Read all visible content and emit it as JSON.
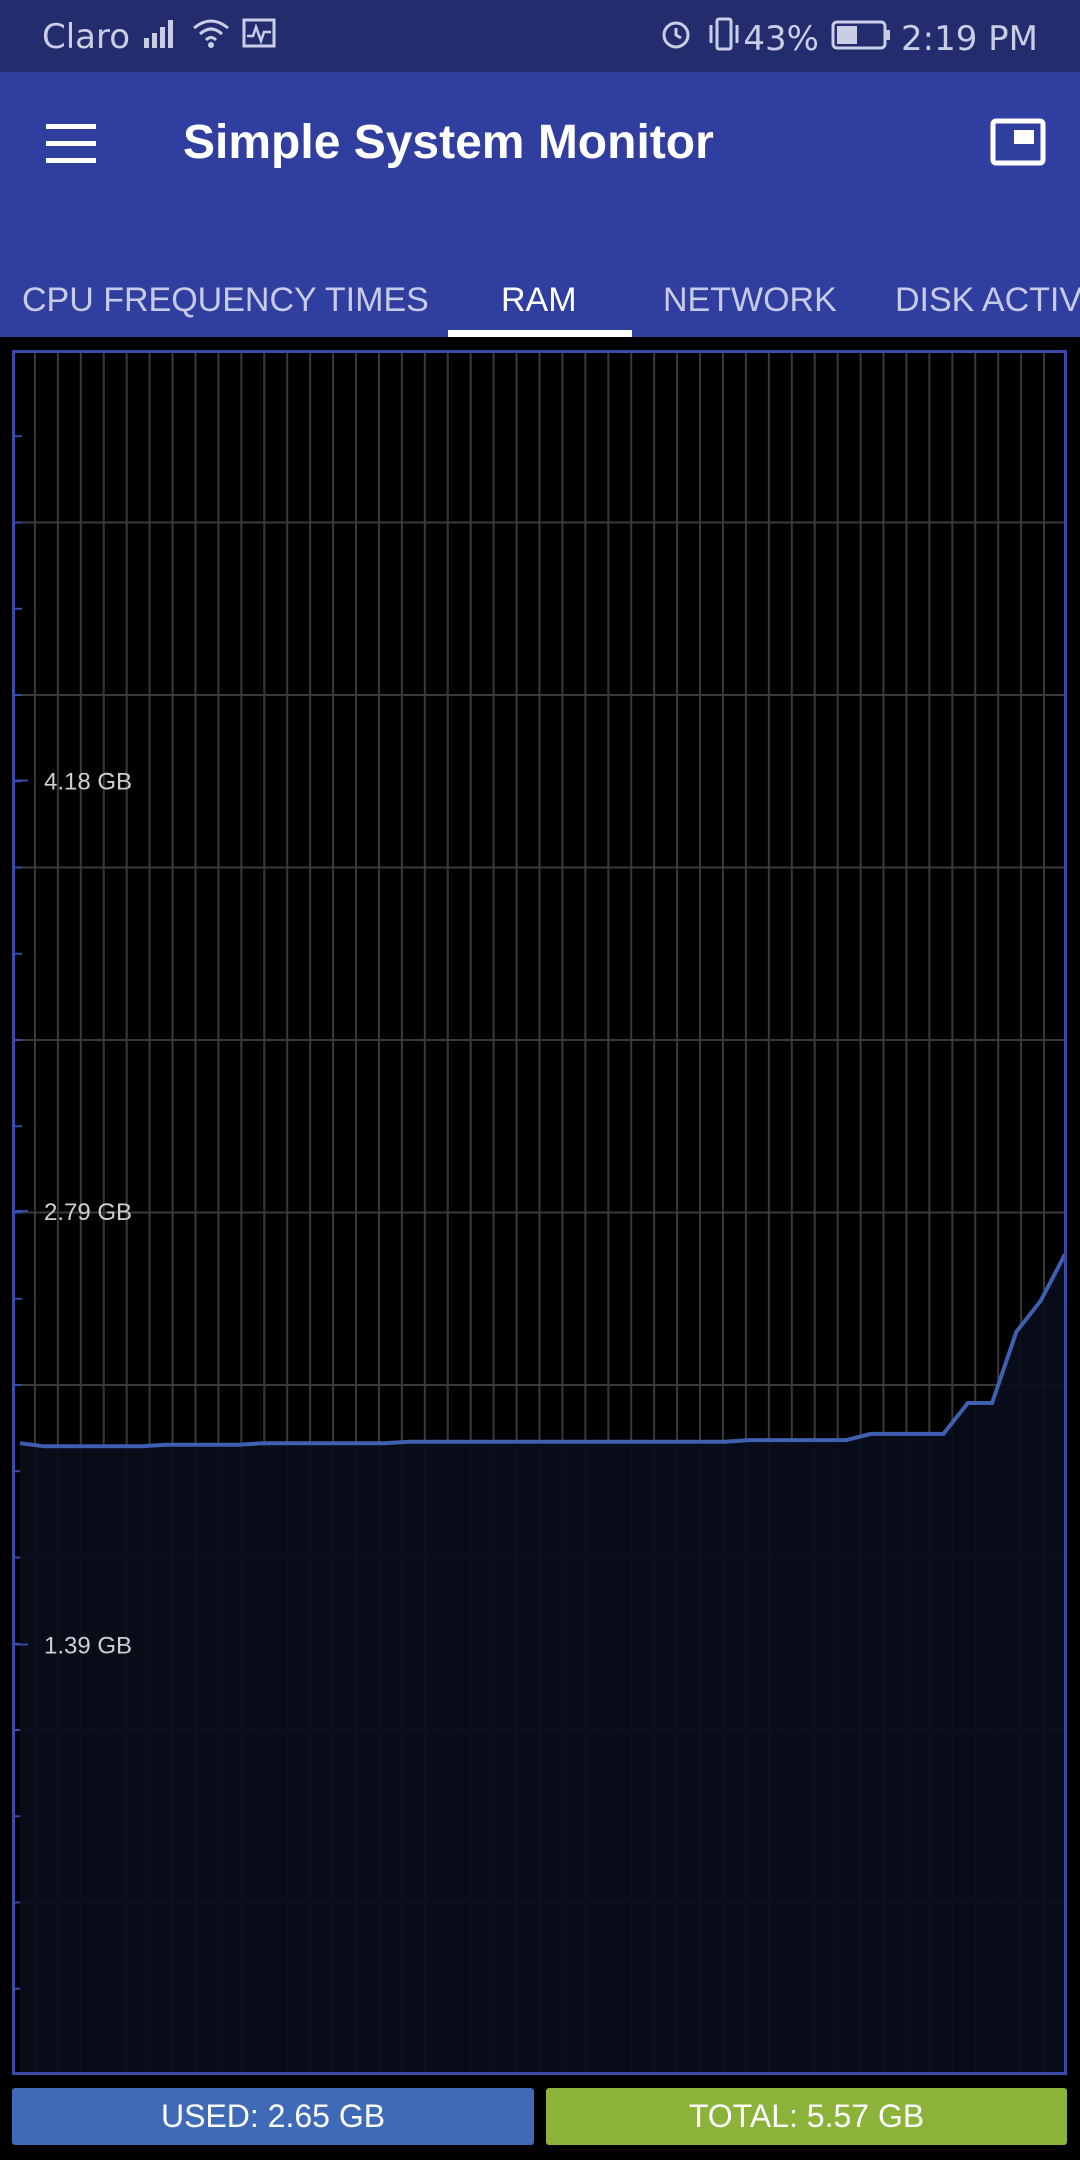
{
  "statusbar": {
    "carrier": "Claro",
    "battery": "43%",
    "time": "2:19 PM",
    "icons": [
      "signal-icon",
      "wifi-icon",
      "activity-icon",
      "alarm-icon",
      "vibrate-icon",
      "battery-icon"
    ]
  },
  "appbar": {
    "title": "Simple System Monitor",
    "menu_icon": "menu-icon",
    "action_icon": "picture-in-picture-icon"
  },
  "tabs": [
    {
      "label": "CPU FREQUENCY TIMES",
      "active": false
    },
    {
      "label": "RAM",
      "active": true
    },
    {
      "label": "NETWORK",
      "active": false
    },
    {
      "label": "DISK ACTIV",
      "active": false
    }
  ],
  "chart_data": {
    "type": "area",
    "title": "",
    "xlabel": "",
    "ylabel": "",
    "y_tick_labels": [
      "4.18 GB",
      "2.79 GB",
      "1.39 GB"
    ],
    "y_ticks": [
      4.18,
      2.79,
      1.39
    ],
    "ylim": [
      0,
      5.57
    ],
    "grid": true,
    "series": [
      {
        "values": [
          2.04,
          2.03,
          2.03,
          2.03,
          2.03,
          2.03,
          2.035,
          2.035,
          2.035,
          2.035,
          2.04,
          2.04,
          2.04,
          2.04,
          2.04,
          2.04,
          2.045,
          2.045,
          2.045,
          2.045,
          2.045,
          2.045,
          2.045,
          2.045,
          2.045,
          2.045,
          2.045,
          2.045,
          2.045,
          2.045,
          2.05,
          2.05,
          2.05,
          2.05,
          2.05,
          2.07,
          2.07,
          2.07,
          2.07,
          2.17,
          2.17,
          2.4,
          2.5,
          2.65
        ]
      }
    ],
    "colors": {
      "line": "#3f5fb0",
      "fill": "#090d1a",
      "grid": "#3a3a3a",
      "border": "#3b4aa8"
    }
  },
  "footer": {
    "used_label": "USED: 2.65 GB",
    "total_label": "TOTAL: 5.57 GB",
    "used_color": "#3f6ab8",
    "total_color": "#8bb33a"
  }
}
